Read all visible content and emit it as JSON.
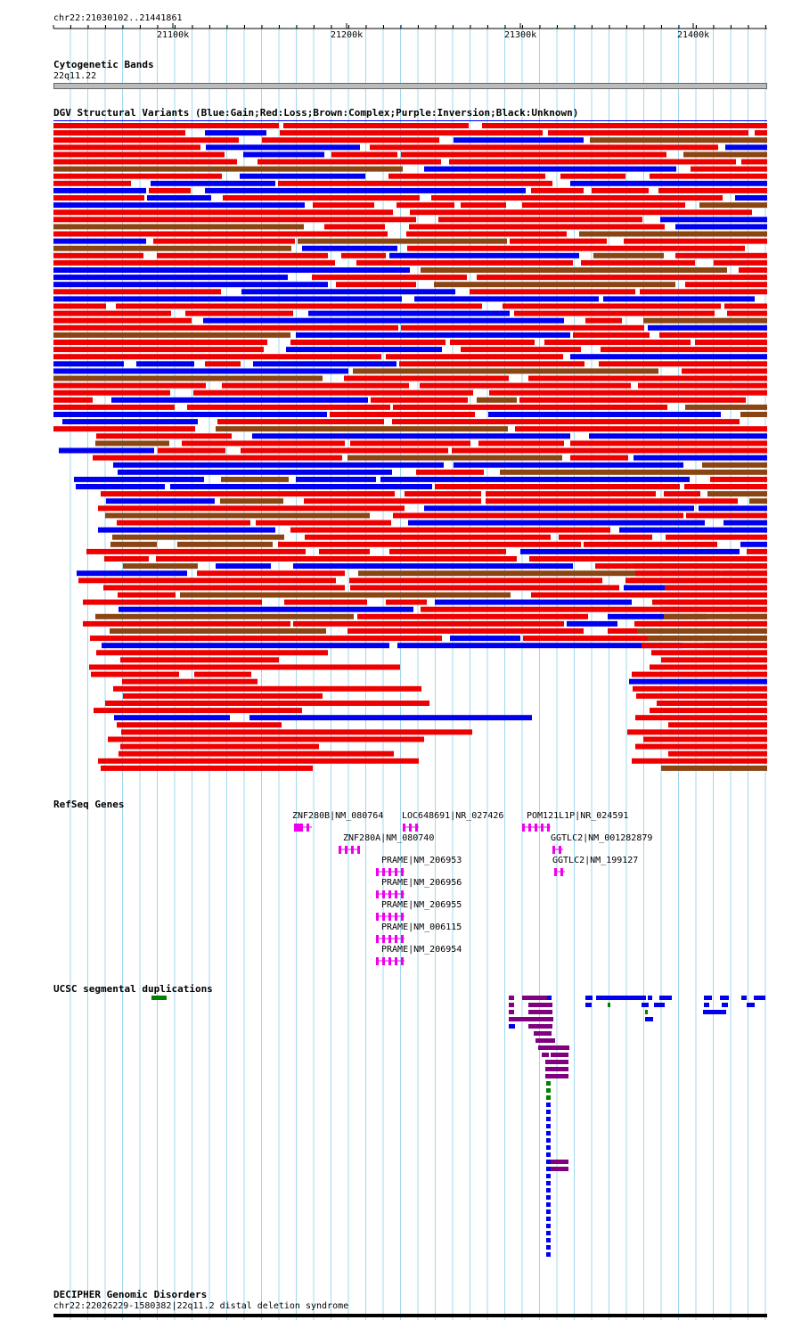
{
  "region": "chr22:21030102..21441861",
  "ruler": {
    "start": 21030102,
    "end": 21441861,
    "ticks": [
      "21100k",
      "21200k",
      "21300k",
      "21400k"
    ]
  },
  "tracks": {
    "cyto": {
      "title": "Cytogenetic Bands",
      "band": "22q11.22"
    },
    "dgv": {
      "title": "DGV Structural Variants (Blue:Gain;Red:Loss;Brown:Complex;Purple:Inversion;Black:Unknown)"
    },
    "refseq": {
      "title": "RefSeq Genes",
      "genes": [
        {
          "label": "ZNF280B|NM_080764"
        },
        {
          "label": "LOC648691|NR_027426"
        },
        {
          "label": "POM121L1P|NR_024591"
        },
        {
          "label": "ZNF280A|NM_080740"
        },
        {
          "label": "GGTLC2|NM_001282879"
        },
        {
          "label": "PRAME|NM_206953"
        },
        {
          "label": "GGTLC2|NM_199127"
        },
        {
          "label": "PRAME|NM_206956"
        },
        {
          "label": "PRAME|NM_206955"
        },
        {
          "label": "PRAME|NM_006115"
        },
        {
          "label": "PRAME|NM_206954"
        }
      ]
    },
    "segdup": {
      "title": "UCSC segmental duplications"
    },
    "decipher": {
      "title": "DECIPHER Genomic Disorders",
      "item": "chr22:22026229-1580382|22q11.2 distal deletion syndrome"
    }
  },
  "colors": {
    "gain": "#0000ee",
    "loss": "#ee0000",
    "complex": "#8b4513",
    "gene": "#ee00ee",
    "segdup_purple": "#800080",
    "segdup_green": "#008000",
    "grid": "#a0d8ef"
  }
}
